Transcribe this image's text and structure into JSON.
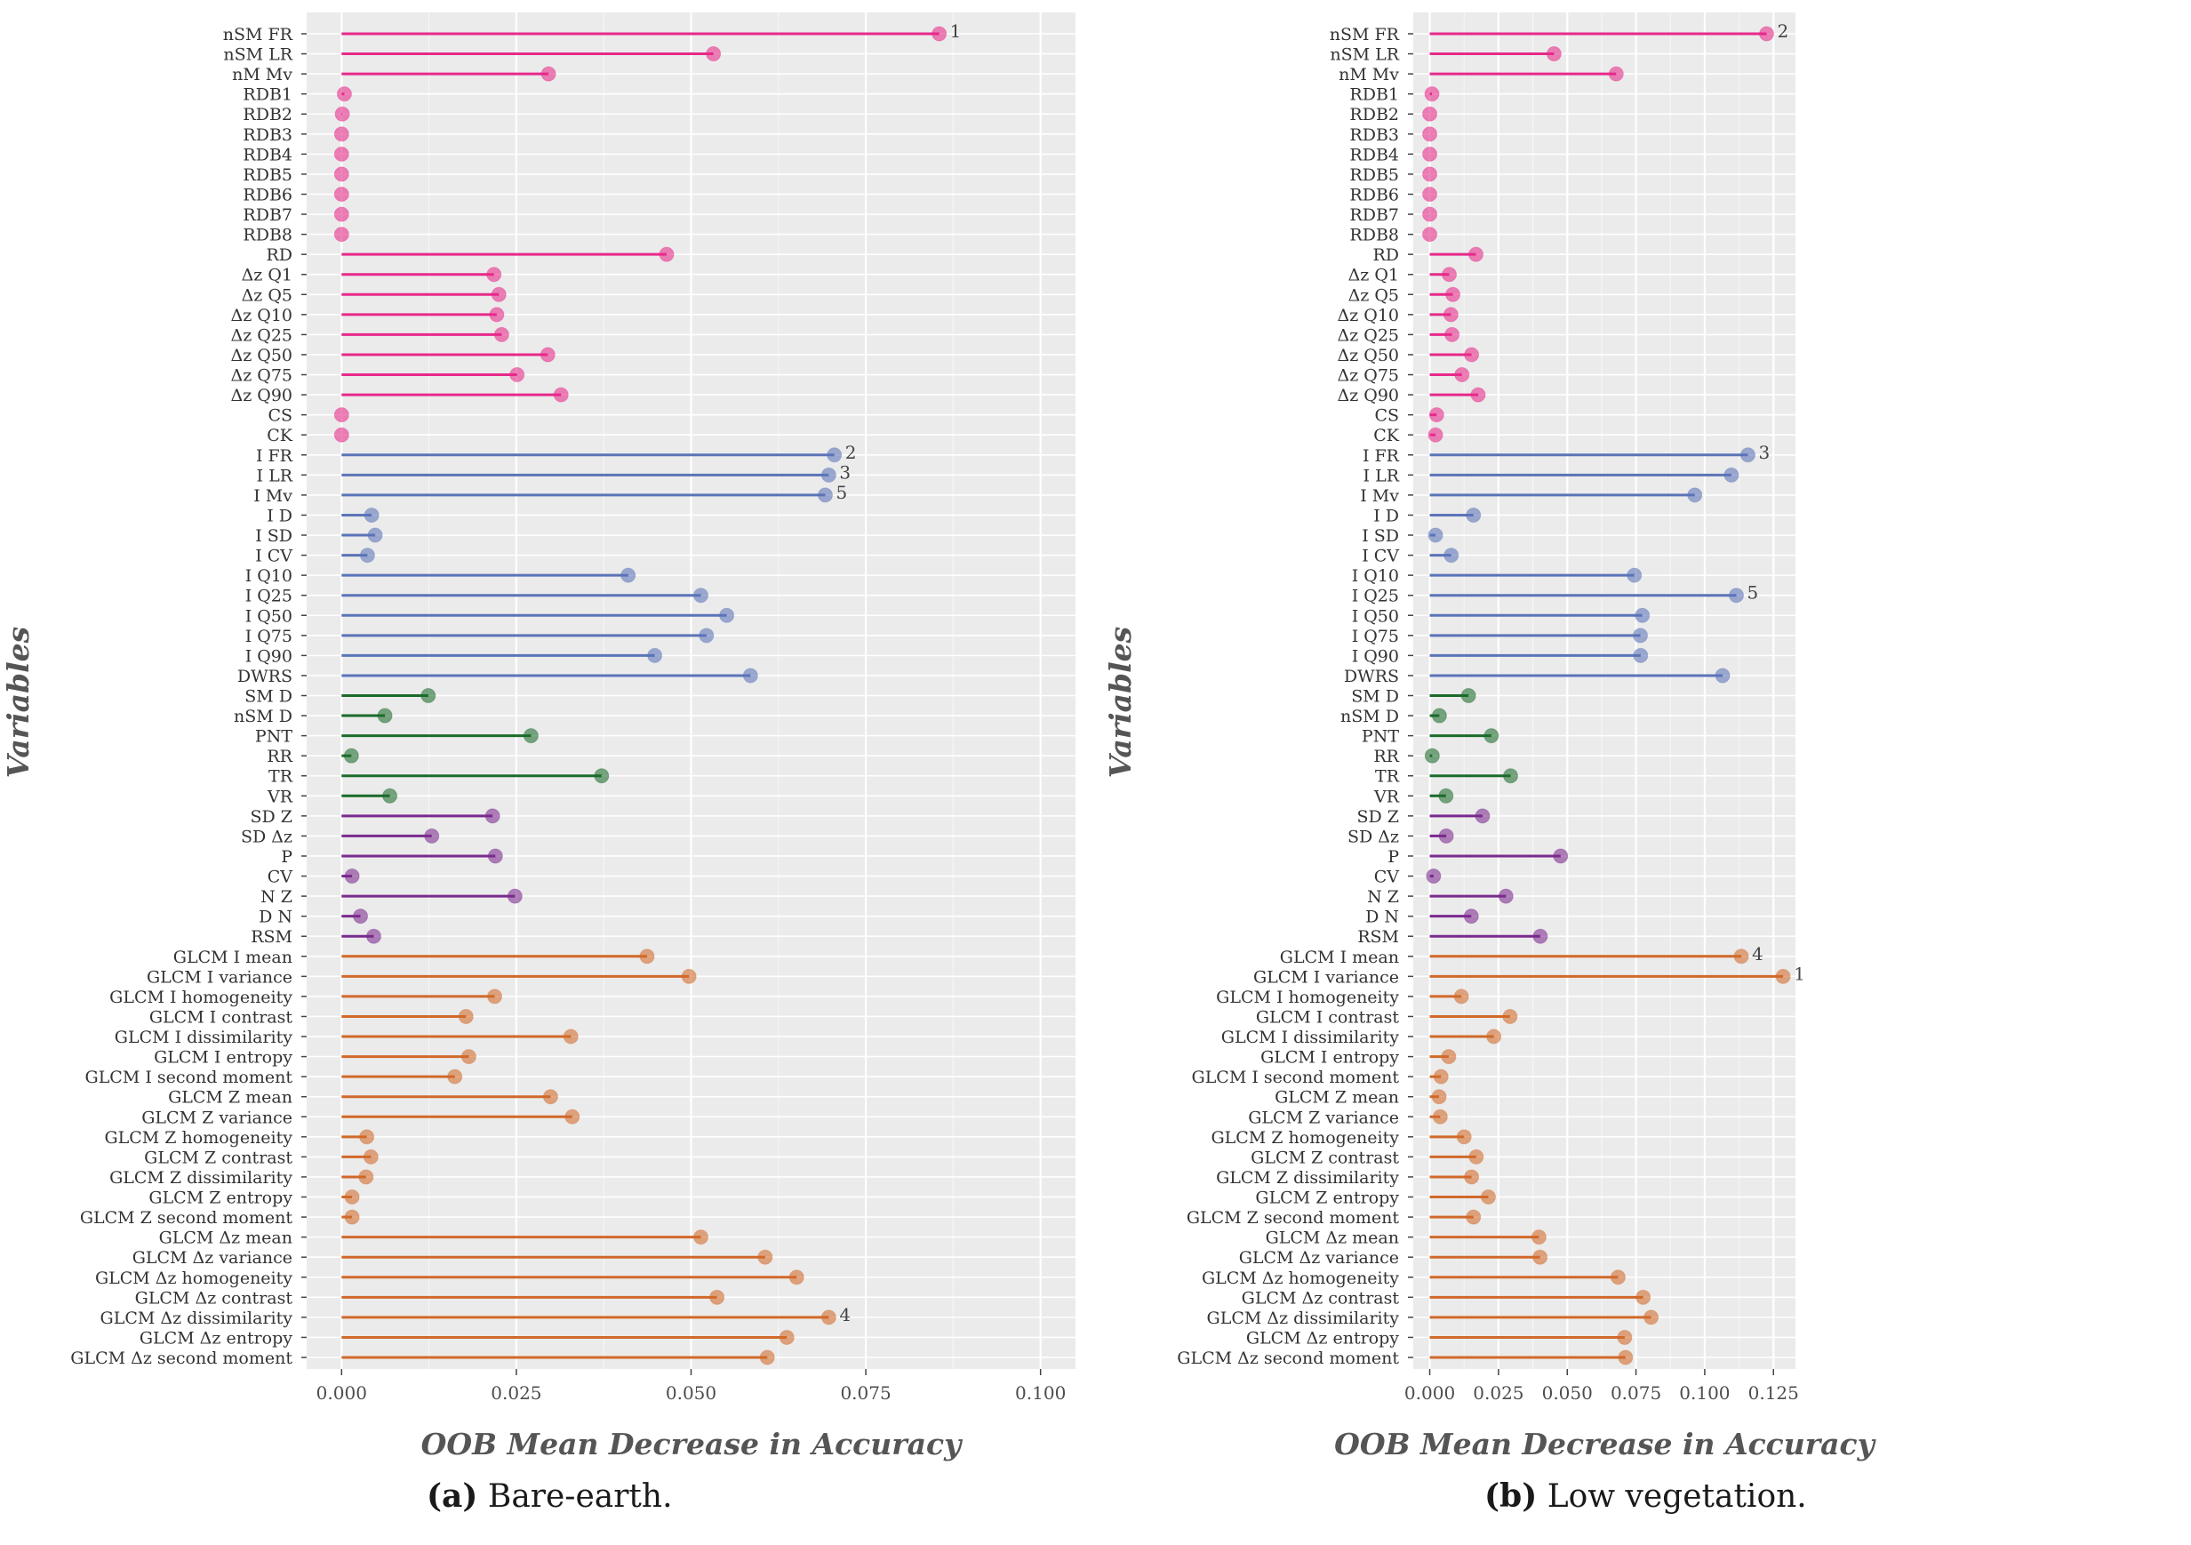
{
  "chart_data": [
    {
      "type": "lollipop",
      "panel": "(a)",
      "caption": {
        "label": "(a)",
        "text": "Bare-earth."
      },
      "xlabel": "OOB Mean Decrease in Accuracy",
      "ylabel": "Variables",
      "xlim": [
        -0.005,
        0.105
      ],
      "xticks": [
        "0.000",
        "0.025",
        "0.050",
        "0.075",
        "0.100"
      ],
      "grid": true,
      "colors": {
        "pink": "#e7298a",
        "blue": "#5b74b8",
        "green": "#1b6b2b",
        "purple": "#7a2a8e",
        "orange": "#d1692a"
      },
      "variables": [
        "nSM FR",
        "nSM LR",
        "nM Mv",
        "RDB1",
        "RDB2",
        "RDB3",
        "RDB4",
        "RDB5",
        "RDB6",
        "RDB7",
        "RDB8",
        "RD",
        "Δz Q1",
        "Δz Q5",
        "Δz Q10",
        "Δz Q25",
        "Δz Q50",
        "Δz Q75",
        "Δz Q90",
        "CS",
        "CK",
        "I FR",
        "I LR",
        "I Mv",
        "I D",
        "I SD",
        "I CV",
        "I Q10",
        "I Q25",
        "I Q50",
        "I Q75",
        "I Q90",
        "DWRS",
        "SM D",
        "nSM D",
        "PNT",
        "RR",
        "TR",
        "VR",
        "SD Z",
        "SD Δz",
        "P",
        "CV",
        "N Z",
        "D N",
        "RSM",
        "GLCM I mean",
        "GLCM I variance",
        "GLCM I homogeneity",
        "GLCM I contrast",
        "GLCM I dissimilarity",
        "GLCM I entropy",
        "GLCM I second moment",
        "GLCM Z mean",
        "GLCM Z variance",
        "GLCM Z homogeneity",
        "GLCM Z contrast",
        "GLCM Z dissimilarity",
        "GLCM Z entropy",
        "GLCM Z second moment",
        "GLCM Δz mean",
        "GLCM Δz variance",
        "GLCM Δz homogeneity",
        "GLCM Δz contrast",
        "GLCM Δz dissimilarity",
        "GLCM Δz entropy",
        "GLCM Δz second moment"
      ],
      "groups": [
        "pink",
        "pink",
        "pink",
        "pink",
        "pink",
        "pink",
        "pink",
        "pink",
        "pink",
        "pink",
        "pink",
        "pink",
        "pink",
        "pink",
        "pink",
        "pink",
        "pink",
        "pink",
        "pink",
        "pink",
        "pink",
        "blue",
        "blue",
        "blue",
        "blue",
        "blue",
        "blue",
        "blue",
        "blue",
        "blue",
        "blue",
        "blue",
        "blue",
        "green",
        "green",
        "green",
        "green",
        "green",
        "green",
        "purple",
        "purple",
        "purple",
        "purple",
        "purple",
        "purple",
        "purple",
        "orange",
        "orange",
        "orange",
        "orange",
        "orange",
        "orange",
        "orange",
        "orange",
        "orange",
        "orange",
        "orange",
        "orange",
        "orange",
        "orange",
        "orange",
        "orange",
        "orange",
        "orange",
        "orange",
        "orange",
        "orange"
      ],
      "values": [
        0.0855,
        0.0532,
        0.0296,
        0.0004,
        0.0001,
        0.0,
        0.0,
        0.0,
        0.0,
        0.0,
        0.0,
        0.0465,
        0.0218,
        0.0225,
        0.0222,
        0.0229,
        0.0295,
        0.0251,
        0.0314,
        0.0,
        0.0,
        0.0705,
        0.0697,
        0.0692,
        0.0043,
        0.0048,
        0.0037,
        0.041,
        0.0514,
        0.0551,
        0.0522,
        0.0448,
        0.0585,
        0.0124,
        0.0062,
        0.0271,
        0.0014,
        0.0372,
        0.0069,
        0.0216,
        0.0129,
        0.022,
        0.0015,
        0.0248,
        0.0027,
        0.0046,
        0.0437,
        0.0497,
        0.0219,
        0.0178,
        0.0328,
        0.0182,
        0.0162,
        0.0299,
        0.033,
        0.0036,
        0.0042,
        0.0035,
        0.0015,
        0.0015,
        0.0514,
        0.0606,
        0.0651,
        0.0537,
        0.0697,
        0.0637,
        0.0609
      ],
      "rank_labels": [
        {
          "variable": "nSM FR",
          "rank": "1"
        },
        {
          "variable": "I FR",
          "rank": "2"
        },
        {
          "variable": "I LR",
          "rank": "3"
        },
        {
          "variable": "GLCM Δz dissimilarity",
          "rank": "4"
        },
        {
          "variable": "I Mv",
          "rank": "5"
        }
      ]
    },
    {
      "type": "lollipop",
      "panel": "(b)",
      "caption": {
        "label": "(b)",
        "text": "Low vegetation."
      },
      "xlabel": "OOB Mean Decrease in Accuracy",
      "ylabel": "Variables",
      "xlim": [
        -0.006,
        0.133
      ],
      "xticks": [
        "0.000",
        "0.025",
        "0.050",
        "0.075",
        "0.100",
        "0.125"
      ],
      "grid": true,
      "colors": {
        "pink": "#e7298a",
        "blue": "#5b74b8",
        "green": "#1b6b2b",
        "purple": "#7a2a8e",
        "orange": "#d1692a"
      },
      "variables": [
        "nSM FR",
        "nSM LR",
        "nM Mv",
        "RDB1",
        "RDB2",
        "RDB3",
        "RDB4",
        "RDB5",
        "RDB6",
        "RDB7",
        "RDB8",
        "RD",
        "Δz Q1",
        "Δz Q5",
        "Δz Q10",
        "Δz Q25",
        "Δz Q50",
        "Δz Q75",
        "Δz Q90",
        "CS",
        "CK",
        "I FR",
        "I LR",
        "I Mv",
        "I D",
        "I SD",
        "I CV",
        "I Q10",
        "I Q25",
        "I Q50",
        "I Q75",
        "I Q90",
        "DWRS",
        "SM D",
        "nSM D",
        "PNT",
        "RR",
        "TR",
        "VR",
        "SD Z",
        "SD Δz",
        "P",
        "CV",
        "N Z",
        "D N",
        "RSM",
        "GLCM I mean",
        "GLCM I variance",
        "GLCM I homogeneity",
        "GLCM I contrast",
        "GLCM I dissimilarity",
        "GLCM I entropy",
        "GLCM I second moment",
        "GLCM Z mean",
        "GLCM Z variance",
        "GLCM Z homogeneity",
        "GLCM Z contrast",
        "GLCM Z dissimilarity",
        "GLCM Z entropy",
        "GLCM Z second moment",
        "GLCM Δz mean",
        "GLCM Δz variance",
        "GLCM Δz homogeneity",
        "GLCM Δz contrast",
        "GLCM Δz dissimilarity",
        "GLCM Δz entropy",
        "GLCM Δz second moment"
      ],
      "groups": [
        "pink",
        "pink",
        "pink",
        "pink",
        "pink",
        "pink",
        "pink",
        "pink",
        "pink",
        "pink",
        "pink",
        "pink",
        "pink",
        "pink",
        "pink",
        "pink",
        "pink",
        "pink",
        "pink",
        "pink",
        "pink",
        "blue",
        "blue",
        "blue",
        "blue",
        "blue",
        "blue",
        "blue",
        "blue",
        "blue",
        "blue",
        "blue",
        "blue",
        "green",
        "green",
        "green",
        "green",
        "green",
        "green",
        "purple",
        "purple",
        "purple",
        "purple",
        "purple",
        "purple",
        "purple",
        "orange",
        "orange",
        "orange",
        "orange",
        "orange",
        "orange",
        "orange",
        "orange",
        "orange",
        "orange",
        "orange",
        "orange",
        "orange",
        "orange",
        "orange",
        "orange",
        "orange",
        "orange",
        "orange",
        "orange",
        "orange"
      ],
      "values": [
        0.1225,
        0.0452,
        0.0678,
        0.0008,
        0.0,
        0.0,
        0.0,
        0.0,
        0.0,
        0.0,
        0.0,
        0.0168,
        0.0071,
        0.0084,
        0.0077,
        0.0081,
        0.0152,
        0.0117,
        0.0176,
        0.0025,
        0.0021,
        0.1157,
        0.1097,
        0.0964,
        0.0159,
        0.0021,
        0.0078,
        0.0744,
        0.1115,
        0.0773,
        0.0766,
        0.0767,
        0.1065,
        0.0141,
        0.0035,
        0.0224,
        0.0009,
        0.0294,
        0.0059,
        0.0192,
        0.006,
        0.0476,
        0.0014,
        0.0277,
        0.0151,
        0.0402,
        0.1133,
        0.1285,
        0.0115,
        0.0292,
        0.0233,
        0.0069,
        0.0041,
        0.0034,
        0.0038,
        0.0125,
        0.0169,
        0.0152,
        0.0213,
        0.0159,
        0.0397,
        0.0401,
        0.0685,
        0.0776,
        0.0805,
        0.0709,
        0.0712
      ],
      "rank_labels": [
        {
          "variable": "GLCM I variance",
          "rank": "1"
        },
        {
          "variable": "nSM FR",
          "rank": "2"
        },
        {
          "variable": "I FR",
          "rank": "3"
        },
        {
          "variable": "GLCM I mean",
          "rank": "4"
        },
        {
          "variable": "I Q25",
          "rank": "5"
        }
      ]
    }
  ]
}
